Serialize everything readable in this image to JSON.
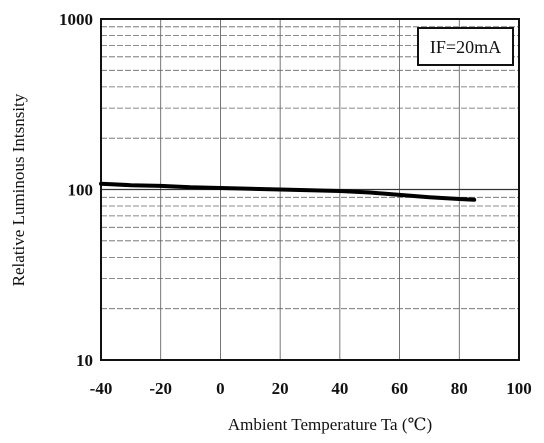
{
  "chart_data": {
    "type": "line",
    "title": "",
    "xlabel": "Ambient Temperature Ta (℃)",
    "ylabel": "Relative Luminous Intsnsity",
    "xlim": [
      -40,
      100
    ],
    "ylim": [
      10,
      1000
    ],
    "y_scale": "log",
    "grid": true,
    "x_ticks": [
      "-40",
      "-20",
      "0",
      "20",
      "40",
      "60",
      "80",
      "100"
    ],
    "y_ticks": [
      "10",
      "100",
      "1000"
    ],
    "annotation": "IF=20mA",
    "series": [
      {
        "x": [
          -40,
          -30,
          -20,
          -10,
          0,
          10,
          20,
          30,
          40,
          50,
          60,
          70,
          80,
          85
        ],
        "y": [
          108,
          106,
          105,
          103,
          102,
          101,
          100,
          99,
          98,
          96,
          93,
          90,
          88,
          87
        ]
      }
    ]
  }
}
